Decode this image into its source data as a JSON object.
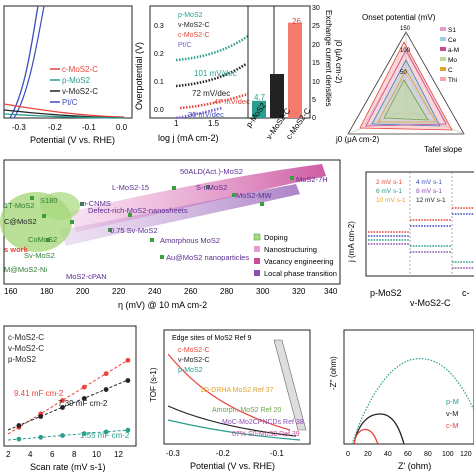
{
  "panel_a": {
    "legend": [
      "c-MoS2-C",
      "p-MoS2",
      "v-MoS2-C",
      "Pt/C"
    ],
    "xlabel": "Potential (V vs. RHE)",
    "xticks": [
      "-0.3",
      "-0.2",
      "-0.1",
      "0.0"
    ],
    "colors": {
      "c": "#e8433a",
      "p": "#2a9d8f",
      "v": "#222222",
      "pt": "#3b4cc0"
    }
  },
  "panel_b": {
    "ylabel": "Overpotential (V)",
    "xlabel": "log j (mA cm-2)",
    "xticks": [
      "1",
      "1.5"
    ],
    "yticks": [
      "0.3",
      "0.2",
      "0.1",
      "0.0"
    ],
    "legend": [
      "p-MoS2",
      "v-MoS2-C",
      "c-MoS2-C",
      "Pt/C"
    ],
    "slopes": [
      "101 mV/dec",
      "72 mV/dec",
      "47 mV/dec",
      "30 mV/dec"
    ]
  },
  "panel_c": {
    "ylabel": "Exchange current densities",
    "ylabel2": "j0 (μA cm-2)",
    "yticks": [
      "30",
      "25",
      "20",
      "15",
      "10",
      "5",
      "0"
    ],
    "categories": [
      "p-MoS2",
      "v-MoS2-C",
      "c-MoS2-C"
    ],
    "values": [
      "4.7",
      "12",
      "26"
    ]
  },
  "panel_d": {
    "title": "Onset potential (mV)",
    "axis_left": "j0 (μA cm-2)",
    "axis_right": "Tafel slope",
    "ticks": [
      "150",
      "100",
      "50"
    ],
    "legend": [
      "S1",
      "Ce",
      "a-M",
      "Mo",
      "C",
      "Thi"
    ]
  },
  "panel_e": {
    "xlabel": "η (mV) @ 10 mA cm-2",
    "xticks": [
      "160",
      "180",
      "200",
      "220",
      "240",
      "260",
      "280",
      "300",
      "320",
      "340"
    ],
    "labels": [
      "50ALD(Act.)-MoS2",
      "L-MoS2-15",
      "m-CNMS",
      "S180",
      "1T-MoS2",
      "C@MoS2",
      "Defect-rich-MoS2-nanosheets",
      "S-nMoS2",
      "MoS2-MW",
      "MoS2-7H",
      "0.75 Sv-MoS2",
      "CoMoS2",
      "Sv-MoS2",
      "Amorphous MoS2",
      "Au@MoS2 nanoparticles",
      "M@MoS2-Ni",
      "MoS2-cPAN",
      "s work"
    ],
    "legend": [
      "Doping",
      "Nanostructuring",
      "Vacancy engineering",
      "Local phase transition"
    ]
  },
  "panel_f": {
    "ylabel": "j (mA cm-2)",
    "legend": [
      "2 mV s-1",
      "4 mV s-1",
      "6 mV s-1",
      "8 mV s-1",
      "10 mV s-1",
      "12 mV s-1"
    ],
    "categories": [
      "p-MoS2",
      "v-MoS2-C",
      "c-"
    ]
  },
  "panel_g": {
    "legend": [
      "c-MoS2-C",
      "v-MoS2-C",
      "p-MoS2"
    ],
    "xlabel": "Scan rate (mV s-1)",
    "xticks": [
      "2",
      "4",
      "6",
      "8",
      "10",
      "12"
    ],
    "annotations": [
      "9.41 mF cm-2",
      "7.39 mF cm-2",
      "1.55 mF cm-2"
    ]
  },
  "panel_h": {
    "ylabel": "TOF (s-1)",
    "xlabel": "Potential (V vs. RHE)",
    "xticks": [
      "-0.3",
      "-0.2",
      "-0.1"
    ],
    "yticks": [
      "10",
      "1",
      "0.1"
    ],
    "legend": [
      "c-MoS2-C",
      "v-MoS2-C",
      "p-MoS2"
    ],
    "refs": [
      "Edge sites of MoS2 Ref 9",
      "1D-DRHA MoS2 Ref 37",
      "Amorph. MoS2 Ref 20",
      "MoC-Mo2CPNCDs Ref 38",
      "67% S0-MoS2 Ref 39"
    ]
  },
  "panel_i": {
    "ylabel": "-Z'' (ohm)",
    "xlabel": "Z' (ohm)",
    "xticks": [
      "0",
      "20",
      "40",
      "60",
      "80",
      "100",
      "120"
    ],
    "yticks": [
      "40",
      "30",
      "20",
      "10",
      "0"
    ],
    "legend": [
      "p-M",
      "v-M",
      "c-M"
    ]
  }
}
